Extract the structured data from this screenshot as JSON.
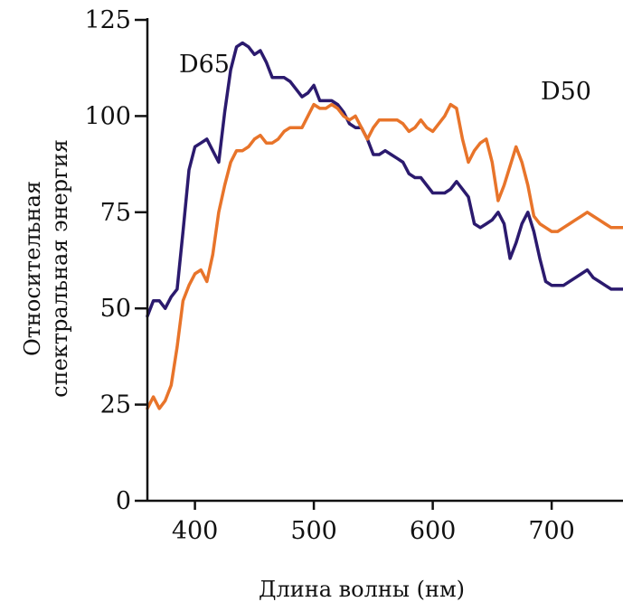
{
  "chart_data": {
    "type": "line",
    "title": "",
    "xlabel": "Длина волны (нм)",
    "ylabel": [
      "Относительная",
      "спектральная энергия"
    ],
    "xlim": [
      360,
      760
    ],
    "ylim": [
      0,
      125
    ],
    "xticks": [
      400,
      500,
      600,
      700
    ],
    "yticks": [
      0,
      25,
      50,
      75,
      100,
      125
    ],
    "grid": false,
    "series": [
      {
        "name": "D65",
        "color": "#2b1a6e",
        "x": [
          360,
          365,
          370,
          375,
          380,
          385,
          390,
          395,
          400,
          405,
          410,
          415,
          420,
          425,
          430,
          435,
          440,
          445,
          450,
          455,
          460,
          465,
          470,
          475,
          480,
          485,
          490,
          495,
          500,
          505,
          510,
          515,
          520,
          525,
          530,
          535,
          540,
          545,
          550,
          555,
          560,
          565,
          570,
          575,
          580,
          585,
          590,
          595,
          600,
          605,
          610,
          615,
          620,
          625,
          630,
          635,
          640,
          645,
          650,
          655,
          660,
          665,
          670,
          675,
          680,
          685,
          690,
          695,
          700,
          705,
          710,
          715,
          720,
          725,
          730,
          735,
          740,
          745,
          750,
          755,
          760
        ],
        "y": [
          48,
          52,
          52,
          50,
          53,
          55,
          70,
          86,
          92,
          93,
          94,
          91,
          88,
          101,
          112,
          118,
          119,
          118,
          116,
          117,
          114,
          110,
          110,
          110,
          109,
          107,
          105,
          106,
          108,
          104,
          104,
          104,
          103,
          101,
          98,
          97,
          97,
          94,
          90,
          90,
          91,
          90,
          89,
          88,
          85,
          84,
          84,
          82,
          80,
          80,
          80,
          81,
          83,
          81,
          79,
          72,
          71,
          72,
          73,
          75,
          72,
          63,
          67,
          72,
          75,
          70,
          63,
          57,
          56,
          56,
          56,
          57,
          58,
          59,
          60,
          58,
          57,
          56,
          55,
          55,
          55
        ]
      },
      {
        "name": "D50",
        "color": "#e8742a",
        "x": [
          360,
          365,
          370,
          375,
          380,
          385,
          390,
          395,
          400,
          405,
          410,
          415,
          420,
          425,
          430,
          435,
          440,
          445,
          450,
          455,
          460,
          465,
          470,
          475,
          480,
          485,
          490,
          495,
          500,
          505,
          510,
          515,
          520,
          525,
          530,
          535,
          540,
          545,
          550,
          555,
          560,
          565,
          570,
          575,
          580,
          585,
          590,
          595,
          600,
          605,
          610,
          615,
          620,
          625,
          630,
          635,
          640,
          645,
          650,
          655,
          660,
          665,
          670,
          675,
          680,
          685,
          690,
          695,
          700,
          705,
          710,
          715,
          720,
          725,
          730,
          735,
          740,
          745,
          750,
          755,
          760
        ],
        "y": [
          24,
          27,
          24,
          26,
          30,
          40,
          52,
          56,
          59,
          60,
          57,
          64,
          75,
          82,
          88,
          91,
          91,
          92,
          94,
          95,
          93,
          93,
          94,
          96,
          97,
          97,
          97,
          100,
          103,
          102,
          102,
          103,
          102,
          100,
          99,
          100,
          97,
          94,
          97,
          99,
          99,
          99,
          99,
          98,
          96,
          97,
          99,
          97,
          96,
          98,
          100,
          103,
          102,
          94,
          88,
          91,
          93,
          94,
          88,
          78,
          82,
          87,
          92,
          88,
          82,
          74,
          72,
          71,
          70,
          70,
          71,
          72,
          73,
          74,
          75,
          74,
          73,
          72,
          71,
          71,
          71
        ]
      }
    ]
  }
}
